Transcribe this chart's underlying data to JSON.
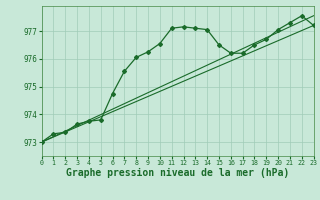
{
  "background_color": "#c8e8d8",
  "grid_color": "#a0ccb8",
  "line_color": "#1a6b2a",
  "marker_color": "#1a6b2a",
  "xlabel": "Graphe pression niveau de la mer (hPa)",
  "xlabel_fontsize": 7,
  "xlim": [
    0,
    23
  ],
  "ylim": [
    972.5,
    977.9
  ],
  "yticks": [
    973,
    974,
    975,
    976,
    977
  ],
  "xticks": [
    0,
    1,
    2,
    3,
    4,
    5,
    6,
    7,
    8,
    9,
    10,
    11,
    12,
    13,
    14,
    15,
    16,
    17,
    18,
    19,
    20,
    21,
    22,
    23
  ],
  "line1_x": [
    0,
    1,
    2,
    3,
    4,
    5,
    6,
    7,
    8,
    9,
    10,
    11,
    12,
    13,
    14,
    15,
    16,
    17,
    18,
    19,
    20,
    21,
    22,
    23
  ],
  "line1_y": [
    973.0,
    973.3,
    973.35,
    973.65,
    973.75,
    973.8,
    974.75,
    975.55,
    976.05,
    976.25,
    976.55,
    977.1,
    977.15,
    977.1,
    977.05,
    976.5,
    976.2,
    976.2,
    976.5,
    976.7,
    977.05,
    977.3,
    977.55,
    977.2
  ],
  "line2_x": [
    0,
    23
  ],
  "line2_y": [
    973.0,
    977.55
  ],
  "line3_x": [
    0,
    23
  ],
  "line3_y": [
    973.0,
    977.2
  ]
}
